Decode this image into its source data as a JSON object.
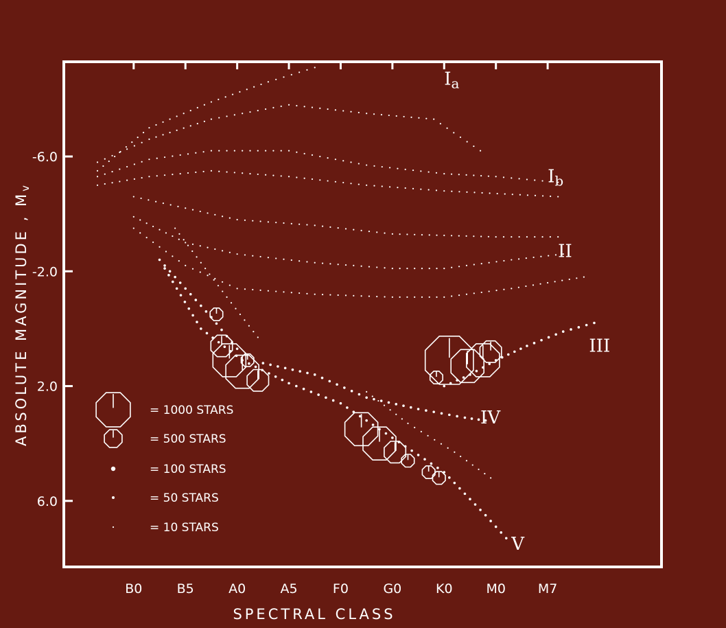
{
  "chart_data": {
    "type": "scatter",
    "xlabel": "SPECTRAL CLASS",
    "ylabel": "ABSOLUTE MAGNITUDE , M",
    "ylabel_sub": "v",
    "x_ticks": [
      "B0",
      "B5",
      "A0",
      "A5",
      "F0",
      "G0",
      "K0",
      "M0",
      "M7"
    ],
    "y_ticks": [
      {
        "label": "-6.0",
        "value": -6
      },
      {
        "label": "-2.0",
        "value": -2
      },
      {
        "label": "2.0",
        "value": 2
      },
      {
        "label": "6.0",
        "value": 6
      }
    ],
    "ylim": [
      8.3,
      -9.3
    ],
    "xlim": [
      -1.35,
      10.2
    ],
    "luminosity_classes": [
      {
        "main": "I",
        "sub": "a",
        "x": 6.0,
        "y": -8.5
      },
      {
        "main": "I",
        "sub": "b",
        "x": 8.0,
        "y": -5.1
      },
      {
        "main": "II",
        "sub": "",
        "x": 8.2,
        "y": -2.5
      },
      {
        "main": "III",
        "sub": "",
        "x": 8.8,
        "y": 0.8
      },
      {
        "main": "IV",
        "sub": "",
        "x": 6.7,
        "y": 3.3
      },
      {
        "main": "V",
        "sub": "",
        "x": 7.3,
        "y": 7.7
      }
    ],
    "legend": [
      {
        "symbol": "octagon-large",
        "label": "= 1000 STARS"
      },
      {
        "symbol": "octagon-small",
        "label": "= 500 STARS"
      },
      {
        "symbol": "dot-100",
        "label": "= 100 STARS"
      },
      {
        "symbol": "dot-50",
        "label": "= 50 STARS"
      },
      {
        "symbol": "dot-10",
        "label": "= 10 STARS"
      }
    ],
    "sequences": [
      {
        "name": "Ia",
        "points": [
          [
            -0.7,
            -5.5
          ],
          [
            0.3,
            -7.0
          ],
          [
            1.5,
            -7.9
          ],
          [
            2.6,
            -8.6
          ],
          [
            3.5,
            -9.1
          ]
        ],
        "size": "10"
      },
      {
        "name": "Ia-lower",
        "points": [
          [
            -0.7,
            -5.8
          ],
          [
            0.3,
            -6.6
          ],
          [
            1.5,
            -7.3
          ],
          [
            3.0,
            -7.8
          ],
          [
            4.5,
            -7.5
          ],
          [
            5.8,
            -7.3
          ],
          [
            6.7,
            -6.2
          ]
        ],
        "size": "10"
      },
      {
        "name": "Ib",
        "points": [
          [
            -0.7,
            -5.3
          ],
          [
            0.3,
            -5.9
          ],
          [
            1.5,
            -6.2
          ],
          [
            3.0,
            -6.2
          ],
          [
            4.5,
            -5.7
          ],
          [
            6.0,
            -5.4
          ],
          [
            7.0,
            -5.3
          ],
          [
            8.2,
            -5.1
          ]
        ],
        "size": "10"
      },
      {
        "name": "Ib-lower",
        "points": [
          [
            -0.7,
            -5.0
          ],
          [
            0.3,
            -5.3
          ],
          [
            1.5,
            -5.5
          ],
          [
            3.0,
            -5.3
          ],
          [
            4.5,
            -5.0
          ],
          [
            6.0,
            -4.8
          ],
          [
            8.2,
            -4.6
          ]
        ],
        "size": "10"
      },
      {
        "name": "II-upper",
        "points": [
          [
            0.0,
            -4.6
          ],
          [
            1.0,
            -4.2
          ],
          [
            2.0,
            -3.8
          ],
          [
            3.5,
            -3.6
          ],
          [
            5.0,
            -3.3
          ],
          [
            7.0,
            -3.2
          ],
          [
            8.2,
            -3.2
          ]
        ],
        "size": "10"
      },
      {
        "name": "II",
        "points": [
          [
            0.0,
            -3.9
          ],
          [
            1.0,
            -3.0
          ],
          [
            2.0,
            -2.6
          ],
          [
            3.5,
            -2.3
          ],
          [
            5.0,
            -2.1
          ],
          [
            6.0,
            -2.1
          ],
          [
            7.3,
            -2.4
          ],
          [
            8.3,
            -2.6
          ]
        ],
        "size": "10"
      },
      {
        "name": "II-lower",
        "points": [
          [
            0.0,
            -3.5
          ],
          [
            1.0,
            -2.2
          ],
          [
            2.0,
            -1.4
          ],
          [
            3.5,
            -1.2
          ],
          [
            5.0,
            -1.1
          ],
          [
            6.0,
            -1.1
          ],
          [
            7.3,
            -1.4
          ],
          [
            8.7,
            -1.8
          ]
        ],
        "size": "10"
      },
      {
        "name": "III",
        "points": [
          [
            6.0,
            2.0
          ],
          [
            6.5,
            1.6
          ],
          [
            7.0,
            1.1
          ],
          [
            7.6,
            0.6
          ],
          [
            8.3,
            0.1
          ],
          [
            8.9,
            -0.2
          ]
        ],
        "size": "50"
      },
      {
        "name": "IV",
        "points": [
          [
            2.5,
            1.2
          ],
          [
            3.5,
            1.6
          ],
          [
            4.5,
            2.4
          ],
          [
            5.5,
            2.8
          ],
          [
            6.4,
            3.1
          ],
          [
            6.8,
            3.2
          ]
        ],
        "size": "50"
      },
      {
        "name": "IV-lower",
        "points": [
          [
            4.5,
            2.2
          ],
          [
            5.3,
            3.3
          ],
          [
            6.2,
            4.3
          ],
          [
            6.9,
            5.2
          ]
        ],
        "size": "10"
      },
      {
        "name": "V",
        "points": [
          [
            0.6,
            -2.1
          ],
          [
            1.3,
            0.0
          ],
          [
            2.1,
            1.1
          ],
          [
            3.0,
            1.9
          ],
          [
            4.0,
            2.6
          ],
          [
            5.0,
            3.8
          ],
          [
            6.0,
            5.0
          ],
          [
            6.8,
            6.5
          ],
          [
            7.2,
            7.3
          ]
        ],
        "size": "50"
      },
      {
        "name": "B-branch-1",
        "points": [
          [
            0.5,
            -2.4
          ],
          [
            1.0,
            -1.4
          ],
          [
            1.5,
            -0.4
          ],
          [
            2.0,
            0.7
          ]
        ],
        "size": "50"
      },
      {
        "name": "B-branch-2",
        "points": [
          [
            0.8,
            -3.5
          ],
          [
            1.3,
            -2.3
          ],
          [
            1.8,
            -1.1
          ],
          [
            2.4,
            0.3
          ]
        ],
        "size": "10"
      }
    ],
    "clusters": [
      {
        "x": 1.85,
        "y": 1.1,
        "size": "1000"
      },
      {
        "x": 2.1,
        "y": 1.5,
        "size": "1000"
      },
      {
        "x": 2.4,
        "y": 1.8,
        "size": "500"
      },
      {
        "x": 1.7,
        "y": 0.6,
        "size": "500"
      },
      {
        "x": 1.6,
        "y": -0.5,
        "size": "500-small"
      },
      {
        "x": 2.2,
        "y": 1.1,
        "size": "500-small"
      },
      {
        "x": 4.4,
        "y": 3.5,
        "size": "1000"
      },
      {
        "x": 4.75,
        "y": 4.0,
        "size": "1000"
      },
      {
        "x": 5.05,
        "y": 4.3,
        "size": "500"
      },
      {
        "x": 5.3,
        "y": 4.6,
        "size": "500-small"
      },
      {
        "x": 6.1,
        "y": 1.1,
        "size": "1000-xl"
      },
      {
        "x": 6.45,
        "y": 1.3,
        "size": "1000"
      },
      {
        "x": 6.75,
        "y": 1.1,
        "size": "1000"
      },
      {
        "x": 6.9,
        "y": 0.8,
        "size": "500"
      },
      {
        "x": 5.85,
        "y": 1.7,
        "size": "500-small"
      },
      {
        "x": 5.7,
        "y": 5.0,
        "size": "500-small"
      },
      {
        "x": 5.9,
        "y": 5.2,
        "size": "500-small"
      }
    ]
  }
}
